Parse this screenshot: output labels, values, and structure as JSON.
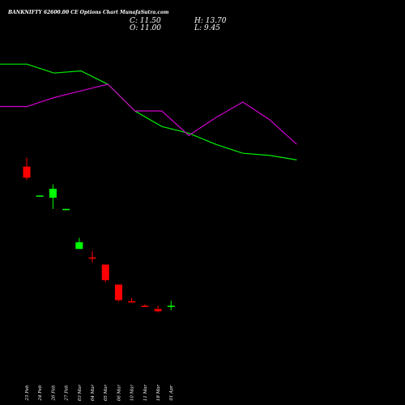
{
  "header": {
    "title": "BANKNIFTY 62600.00  CE Options  Chart MunafaSutra.com",
    "close": "C: 11.50",
    "open": "O: 11.00",
    "high": "H: 13.70",
    "low": "L: 9.45"
  },
  "colors": {
    "background": "#000000",
    "bullish": "#00ff00",
    "bearish": "#ff0000",
    "ma_fast": "#00ee00",
    "ma_slow": "#cc00cc",
    "text": "#ffffff"
  },
  "chart_data": {
    "type": "candlestick",
    "title": "BANKNIFTY 62600.00  CE Options  Chart MunafaSutra.com",
    "categories": [
      "23 Feb",
      "24 Feb",
      "26 Feb",
      "27 Feb",
      "03 Mar",
      "04 Mar",
      "05 Mar",
      "06 Mar",
      "10 Mar",
      "11 Mar",
      "18 Mar",
      "01 Apr"
    ],
    "ohlc": [
      {
        "o": 74.0,
        "h": 78.0,
        "l": 68.0,
        "c": 69.0
      },
      {
        "o": 61.0,
        "h": 61.0,
        "l": 60.5,
        "c": 61.0
      },
      {
        "o": 60.0,
        "h": 66.0,
        "l": 55.0,
        "c": 64.0
      },
      {
        "o": 55.0,
        "h": 55.0,
        "l": 54.5,
        "c": 55.0
      },
      {
        "o": 37.0,
        "h": 42.0,
        "l": 37.0,
        "c": 40.0
      },
      {
        "o": 33.2,
        "h": 36.0,
        "l": 31.0,
        "c": 32.8
      },
      {
        "o": 30.0,
        "h": 30.0,
        "l": 22.0,
        "c": 23.0
      },
      {
        "o": 21.0,
        "h": 21.0,
        "l": 13.5,
        "c": 14.0
      },
      {
        "o": 13.5,
        "h": 15.0,
        "l": 13.0,
        "c": 13.0
      },
      {
        "o": 11.5,
        "h": 12.0,
        "l": 11.0,
        "c": 11.0
      },
      {
        "o": 10.0,
        "h": 11.5,
        "l": 8.5,
        "c": 9.0
      },
      {
        "o": 11.0,
        "h": 13.7,
        "l": 9.45,
        "c": 11.5
      }
    ],
    "series": [
      {
        "values": [
          120,
          120,
          116,
          117,
          111,
          99,
          92,
          89,
          84,
          80,
          79,
          77
        ]
      },
      {
        "values": [
          101,
          101,
          105,
          108,
          111,
          99,
          99,
          88,
          96,
          103,
          95,
          84
        ]
      }
    ],
    "ylim": [
      -20,
      127
    ],
    "xlabel": "",
    "ylabel": ""
  }
}
